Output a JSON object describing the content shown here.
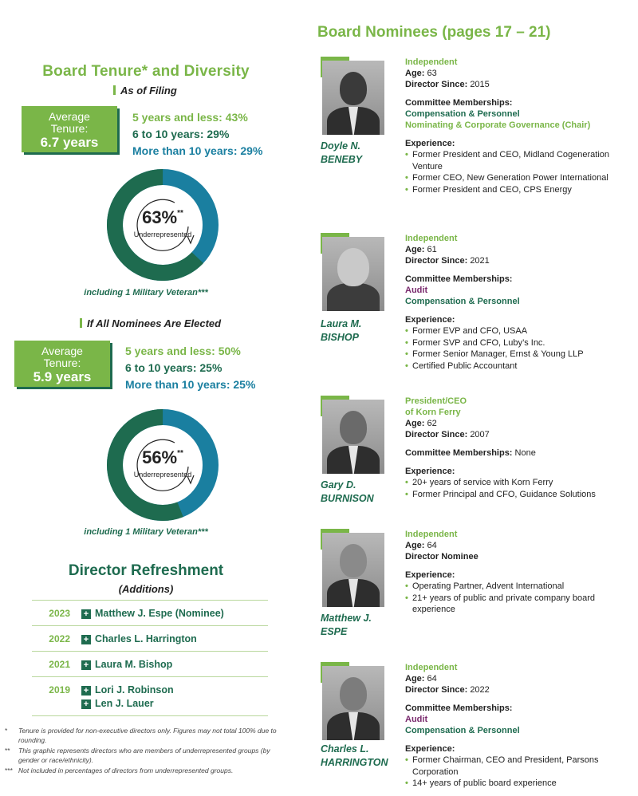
{
  "left": {
    "title": "Board Tenure* and Diversity",
    "filing": {
      "subhead": "As of Filing",
      "avg_label": "Average Tenure:",
      "avg_value": "6.7 years",
      "stat1_label": "5 years and less: ",
      "stat1_value": "43%",
      "stat2_label": "6 to 10 years: ",
      "stat2_value": "29%",
      "stat3_label": "More than 10 years: ",
      "stat3_value": "29%",
      "donut_pct": "63%",
      "donut_sup": "**",
      "donut_label": "Underrepresented",
      "donut_fill": 0.63,
      "veteran": "including 1 Military Veteran***"
    },
    "elected": {
      "subhead": "If All Nominees Are Elected",
      "avg_label": "Average Tenure:",
      "avg_value": "5.9 years",
      "stat1_label": "5 years and less: ",
      "stat1_value": "50%",
      "stat2_label": "6 to 10 years: ",
      "stat2_value": "25%",
      "stat3_label": "More than 10 years: ",
      "stat3_value": "25%",
      "donut_pct": "56%",
      "donut_sup": "**",
      "donut_label": "Underrepresented",
      "donut_fill": 0.56,
      "veteran": "including 1 Military Veteran***"
    },
    "refreshment": {
      "title": "Director Refreshment",
      "subtitle": "(Additions)",
      "rows": [
        {
          "year": "2023",
          "names": [
            "Matthew J. Espe (Nominee)"
          ]
        },
        {
          "year": "2022",
          "names": [
            "Charles L. Harrington"
          ]
        },
        {
          "year": "2021",
          "names": [
            "Laura M. Bishop"
          ]
        },
        {
          "year": "2019",
          "names": [
            "Lori J. Robinson",
            "Len J. Lauer"
          ]
        }
      ]
    },
    "footnotes": [
      {
        "mark": "*",
        "text": "Tenure is provided for non-executive directors only. Figures may not total 100% due to rounding."
      },
      {
        "mark": "**",
        "text": "This graphic represents directors who are members of underrepresented groups (by gender or race/ethnicity)."
      },
      {
        "mark": "***",
        "text": "Not included in percentages of directors from underrepresented groups."
      }
    ]
  },
  "right": {
    "title": "Board Nominees (pages 17 – 21)",
    "nominees": [
      {
        "first": "Doyle N.",
        "last": "BENEBY",
        "tag": "Independent",
        "age_label": "Age: ",
        "age": "63",
        "since_label": "Director Since: ",
        "since": "2015",
        "committee_label": "Committee Memberships:",
        "committees": [
          {
            "name": "Compensation & Personnel",
            "color": "green"
          },
          {
            "name": "Nominating & Corporate Governance (Chair)",
            "color": "lightgreen"
          }
        ],
        "exp_label": "Experience:",
        "experience": [
          "Former President and CEO, Midland Cogeneration Venture",
          "Former CEO, New Generation Power International",
          "Former President and CEO, CPS Energy"
        ]
      },
      {
        "first": "Laura M.",
        "last": "BISHOP",
        "tag": "Independent",
        "age_label": "Age: ",
        "age": "61",
        "since_label": "Director Since: ",
        "since": "2021",
        "committee_label": "Committee Memberships:",
        "committees": [
          {
            "name": "Audit",
            "color": "purple"
          },
          {
            "name": "Compensation & Personnel",
            "color": "green"
          }
        ],
        "exp_label": "Experience:",
        "experience": [
          "Former EVP and CFO, USAA",
          "Former SVP and CFO, Luby’s Inc.",
          "Former Senior Manager, Ernst & Young LLP",
          "Certified Public Accountant"
        ]
      },
      {
        "first": "Gary D.",
        "last": "BURNISON",
        "tag": "President/CEO",
        "tag2": "of Korn Ferry",
        "age_label": "Age: ",
        "age": "62",
        "since_label": "Director Since: ",
        "since": "2007",
        "committee_label": "Committee Memberships: ",
        "committee_none": "None",
        "exp_label": "Experience:",
        "experience": [
          "20+ years of service with Korn Ferry",
          "Former Principal and CFO, Guidance Solutions"
        ]
      },
      {
        "first": "Matthew J.",
        "last": "ESPE",
        "tag": "Independent",
        "age_label": "Age: ",
        "age": "64",
        "nominee_label": "Director Nominee",
        "exp_label": "Experience:",
        "experience": [
          "Operating Partner, Advent International",
          "21+ years of public and private company board experience"
        ]
      },
      {
        "first": "Charles L.",
        "last": "HARRINGTON",
        "tag": "Independent",
        "age_label": "Age: ",
        "age": "64",
        "since_label": "Director Since: ",
        "since": "2022",
        "committee_label": "Committee Memberships:",
        "committees": [
          {
            "name": "Audit",
            "color": "purple"
          },
          {
            "name": "Compensation & Personnel",
            "color": "green"
          }
        ],
        "exp_label": "Experience:",
        "experience": [
          "Former Chairman, CEO and President, Parsons Corporation",
          "14+ years of public board experience"
        ]
      }
    ]
  },
  "colors": {
    "light_green": "#7ab648",
    "dark_green": "#1e6b4f",
    "blue": "#1a7fa0",
    "purple": "#7a2a6e"
  }
}
